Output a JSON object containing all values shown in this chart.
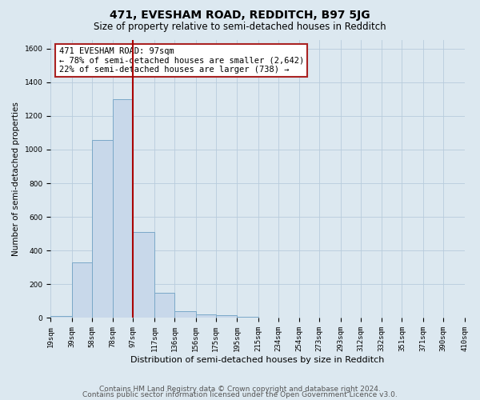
{
  "title": "471, EVESHAM ROAD, REDDITCH, B97 5JG",
  "subtitle": "Size of property relative to semi-detached houses in Redditch",
  "xlabel": "Distribution of semi-detached houses by size in Redditch",
  "ylabel": "Number of semi-detached properties",
  "footer_line1": "Contains HM Land Registry data © Crown copyright and database right 2024.",
  "footer_line2": "Contains public sector information licensed under the Open Government Licence v3.0.",
  "property_size": 97,
  "annotation_title": "471 EVESHAM ROAD: 97sqm",
  "annotation_line2": "← 78% of semi-detached houses are smaller (2,642)",
  "annotation_line3": "22% of semi-detached houses are larger (738) →",
  "bin_left_edges": [
    19,
    39,
    58,
    78,
    97,
    117,
    136,
    156,
    175,
    195,
    215,
    234,
    254,
    273,
    293,
    312,
    332,
    351,
    371,
    390
  ],
  "bin_right_edges": [
    39,
    58,
    78,
    97,
    117,
    136,
    156,
    175,
    195,
    215,
    234,
    254,
    273,
    293,
    312,
    332,
    351,
    371,
    390,
    410
  ],
  "bar_heights": [
    10,
    330,
    1055,
    1300,
    510,
    150,
    40,
    20,
    15,
    5,
    0,
    0,
    0,
    0,
    0,
    0,
    0,
    0,
    0,
    0
  ],
  "tick_labels": [
    "19sqm",
    "39sqm",
    "58sqm",
    "78sqm",
    "97sqm",
    "117sqm",
    "136sqm",
    "156sqm",
    "175sqm",
    "195sqm",
    "215sqm",
    "234sqm",
    "254sqm",
    "273sqm",
    "293sqm",
    "312sqm",
    "332sqm",
    "351sqm",
    "371sqm",
    "390sqm",
    "410sqm"
  ],
  "bar_color": "#c8d8ea",
  "bar_edge_color": "#7aa8c8",
  "redline_color": "#aa0000",
  "grid_color": "#b8ccdc",
  "bg_color": "#dce8f0",
  "annotation_box_facecolor": "#ffffff",
  "annotation_box_edgecolor": "#aa2222",
  "ylim": [
    0,
    1650
  ],
  "yticks": [
    0,
    200,
    400,
    600,
    800,
    1000,
    1200,
    1400,
    1600
  ],
  "title_fontsize": 10,
  "subtitle_fontsize": 8.5,
  "tick_fontsize": 6.5,
  "ylabel_fontsize": 7.5,
  "xlabel_fontsize": 8,
  "annotation_fontsize": 7.5,
  "footer_fontsize": 6.5
}
